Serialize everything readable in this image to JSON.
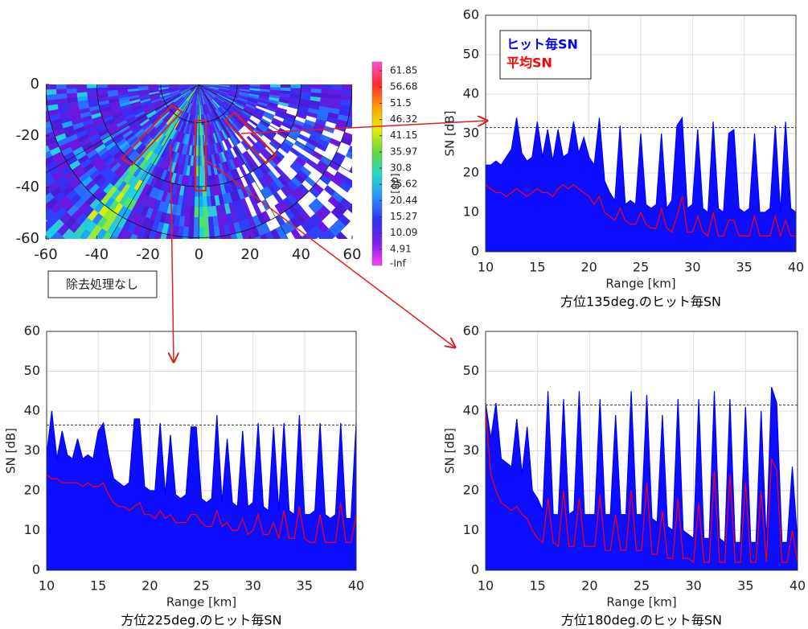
{
  "chart_data": [
    {
      "type": "polar-heatmap",
      "xlim": [
        -60,
        60
      ],
      "xticks": [
        -60,
        -40,
        -20,
        0,
        20,
        40,
        60
      ],
      "ylim": [
        -60,
        0
      ],
      "yticks": [
        0,
        -20,
        -40,
        -60
      ],
      "clim": [
        -0.26,
        64.7
      ],
      "colorbar_ticks": [
        61.85,
        56.68,
        51.5,
        46.32,
        41.15,
        35.97,
        30.8,
        25.62,
        20.44,
        15.27,
        10.09,
        4.91
      ],
      "colorbar_min_label": "-Inf",
      "colorbar_label": "[dB]",
      "colormap": [
        "#ff50d0",
        "#ff2a2a",
        "#ffa000",
        "#e8ee00",
        "#60d840",
        "#20d8c8",
        "#2a90ff",
        "#3030f0",
        "#7a20e8",
        "#ff40ff"
      ],
      "annotation": "除去処理なし"
    },
    {
      "type": "line",
      "title": "方位135deg.のヒット毎SN",
      "xlabel": "Range [km]",
      "ylabel": "SN [dB]",
      "xlim": [
        10,
        40
      ],
      "xticks": [
        10,
        15,
        20,
        25,
        30,
        35,
        40
      ],
      "ylim": [
        0,
        60
      ],
      "yticks": [
        0,
        10,
        20,
        30,
        40,
        50,
        60
      ],
      "grid": true,
      "legend": "upper left",
      "threshold": 31.5,
      "x": [
        10,
        10.5,
        11,
        11.5,
        12,
        12.5,
        13,
        13.5,
        14,
        14.5,
        15,
        15.5,
        16,
        16.5,
        17,
        17.5,
        18,
        18.5,
        19,
        19.5,
        20,
        20.5,
        21,
        21.5,
        22,
        22.5,
        23,
        23.5,
        24,
        24.5,
        25,
        25.5,
        26,
        26.5,
        27,
        27.5,
        28,
        28.5,
        29,
        29.5,
        30,
        30.5,
        31,
        31.5,
        32,
        32.5,
        33,
        33.5,
        34,
        34.5,
        35,
        35.5,
        36,
        36.5,
        37,
        37.5,
        38,
        38.5,
        39,
        39.5,
        40
      ],
      "series": [
        {
          "name": "ヒット毎SN",
          "color": "#0000ff",
          "area": true,
          "values": [
            22,
            22,
            23,
            22,
            24,
            26,
            34,
            25,
            23,
            24,
            33,
            24,
            31,
            23,
            31,
            24,
            25,
            33,
            25,
            29,
            24,
            22,
            34,
            18,
            15,
            13,
            32,
            12,
            13,
            12,
            30,
            12,
            11,
            12,
            30,
            11,
            13,
            32,
            34,
            11,
            12,
            31,
            11,
            10,
            33,
            11,
            10,
            30,
            31,
            11,
            10,
            11,
            30,
            10,
            10,
            11,
            32,
            10,
            33,
            11,
            10
          ]
        },
        {
          "name": "平均SN",
          "color": "#ff0000",
          "area": false,
          "values": [
            17,
            16,
            15,
            15,
            14,
            15,
            16,
            15,
            14,
            15,
            16,
            15,
            15,
            14,
            16,
            17,
            16,
            17,
            16,
            15,
            14,
            12,
            14,
            10,
            9,
            8,
            11,
            8,
            7,
            7,
            10,
            7,
            6,
            6,
            11,
            6,
            5,
            9,
            14,
            5,
            5,
            9,
            5,
            4,
            10,
            4,
            4,
            8,
            8,
            4,
            4,
            4,
            9,
            4,
            4,
            4,
            9,
            4,
            8,
            4,
            4
          ]
        }
      ]
    },
    {
      "type": "line",
      "title": "方位225deg.のヒット毎SN",
      "xlabel": "Range [km]",
      "ylabel": "SN [dB]",
      "xlim": [
        10,
        40
      ],
      "xticks": [
        10,
        15,
        20,
        25,
        30,
        35,
        40
      ],
      "ylim": [
        0,
        60
      ],
      "yticks": [
        0,
        10,
        20,
        30,
        40,
        50,
        60
      ],
      "grid": true,
      "legend": false,
      "threshold": 36.5,
      "x": [
        10,
        10.5,
        11,
        11.5,
        12,
        12.5,
        13,
        13.5,
        14,
        14.5,
        15,
        15.5,
        16,
        16.5,
        17,
        17.5,
        18,
        18.5,
        19,
        19.5,
        20,
        20.5,
        21,
        21.5,
        22,
        22.5,
        23,
        23.5,
        24,
        24.5,
        25,
        25.5,
        26,
        26.5,
        27,
        27.5,
        28,
        28.5,
        29,
        29.5,
        30,
        30.5,
        31,
        31.5,
        32,
        32.5,
        33,
        33.5,
        34,
        34.5,
        35,
        35.5,
        36,
        36.5,
        37,
        37.5,
        38,
        38.5,
        39,
        39.5,
        40
      ],
      "series": [
        {
          "color": "#0000ff",
          "area": true,
          "values": [
            29,
            40,
            28,
            35,
            29,
            28,
            33,
            28,
            29,
            28,
            35,
            37,
            29,
            23,
            22,
            21,
            22,
            38,
            38,
            21,
            20,
            20,
            37,
            19,
            34,
            19,
            18,
            19,
            36,
            36,
            18,
            17,
            18,
            39,
            17,
            33,
            17,
            16,
            35,
            16,
            17,
            37,
            16,
            15,
            36,
            15,
            37,
            15,
            14,
            39,
            14,
            14,
            15,
            37,
            14,
            13,
            14,
            37,
            13,
            13,
            37
          ]
        },
        {
          "color": "#ff0000",
          "area": false,
          "values": [
            24,
            23,
            23,
            22,
            22,
            22,
            22,
            21,
            22,
            21,
            21,
            22,
            19,
            17,
            16,
            16,
            15,
            16,
            17,
            14,
            14,
            13,
            15,
            13,
            14,
            12,
            12,
            12,
            14,
            14,
            12,
            11,
            11,
            15,
            11,
            12,
            10,
            10,
            13,
            9,
            10,
            14,
            9,
            9,
            12,
            8,
            15,
            8,
            8,
            16,
            8,
            7,
            7,
            14,
            7,
            7,
            7,
            17,
            7,
            7,
            14
          ]
        }
      ]
    },
    {
      "type": "line",
      "title": "方位180deg.のヒット毎SN",
      "xlabel": "Range [km]",
      "ylabel": "SN [dB]",
      "xlim": [
        10,
        40
      ],
      "xticks": [
        10,
        15,
        20,
        25,
        30,
        35,
        40
      ],
      "ylim": [
        0,
        60
      ],
      "yticks": [
        0,
        10,
        20,
        30,
        40,
        50,
        60
      ],
      "grid": true,
      "legend": false,
      "threshold": 41.5,
      "x": [
        10,
        10.5,
        11,
        11.5,
        12,
        12.5,
        13,
        13.5,
        14,
        14.5,
        15,
        15.5,
        16,
        16.5,
        17,
        17.5,
        18,
        18.5,
        19,
        19.5,
        20,
        20.5,
        21,
        21.5,
        22,
        22.5,
        23,
        23.5,
        24,
        24.5,
        25,
        25.5,
        26,
        26.5,
        27,
        27.5,
        28,
        28.5,
        29,
        29.5,
        30,
        30.5,
        31,
        31.5,
        32,
        32.5,
        33,
        33.5,
        34,
        34.5,
        35,
        35.5,
        36,
        36.5,
        37,
        37.5,
        38,
        38.5,
        39,
        39.5,
        40
      ],
      "series": [
        {
          "color": "#0000ff",
          "area": true,
          "values": [
            42,
            33,
            42,
            28,
            27,
            26,
            38,
            24,
            36,
            20,
            18,
            15,
            45,
            14,
            14,
            43,
            14,
            15,
            45,
            14,
            14,
            14,
            43,
            14,
            14,
            39,
            14,
            14,
            45,
            14,
            14,
            44,
            13,
            12,
            39,
            11,
            10,
            43,
            10,
            9,
            8,
            43,
            8,
            8,
            45,
            8,
            7,
            43,
            7,
            7,
            41,
            7,
            7,
            40,
            7,
            46,
            42,
            7,
            7,
            26,
            7
          ]
        },
        {
          "color": "#ff0000",
          "area": false,
          "values": [
            40,
            24,
            20,
            17,
            16,
            15,
            16,
            14,
            13,
            10,
            8,
            7,
            18,
            7,
            6,
            20,
            6,
            6,
            18,
            6,
            6,
            6,
            19,
            5,
            5,
            14,
            5,
            5,
            20,
            5,
            5,
            22,
            4,
            4,
            15,
            3,
            3,
            18,
            3,
            3,
            2,
            17,
            2,
            2,
            25,
            2,
            2,
            24,
            2,
            2,
            22,
            2,
            2,
            20,
            2,
            28,
            25,
            2,
            2,
            10,
            2
          ]
        }
      ]
    }
  ]
}
